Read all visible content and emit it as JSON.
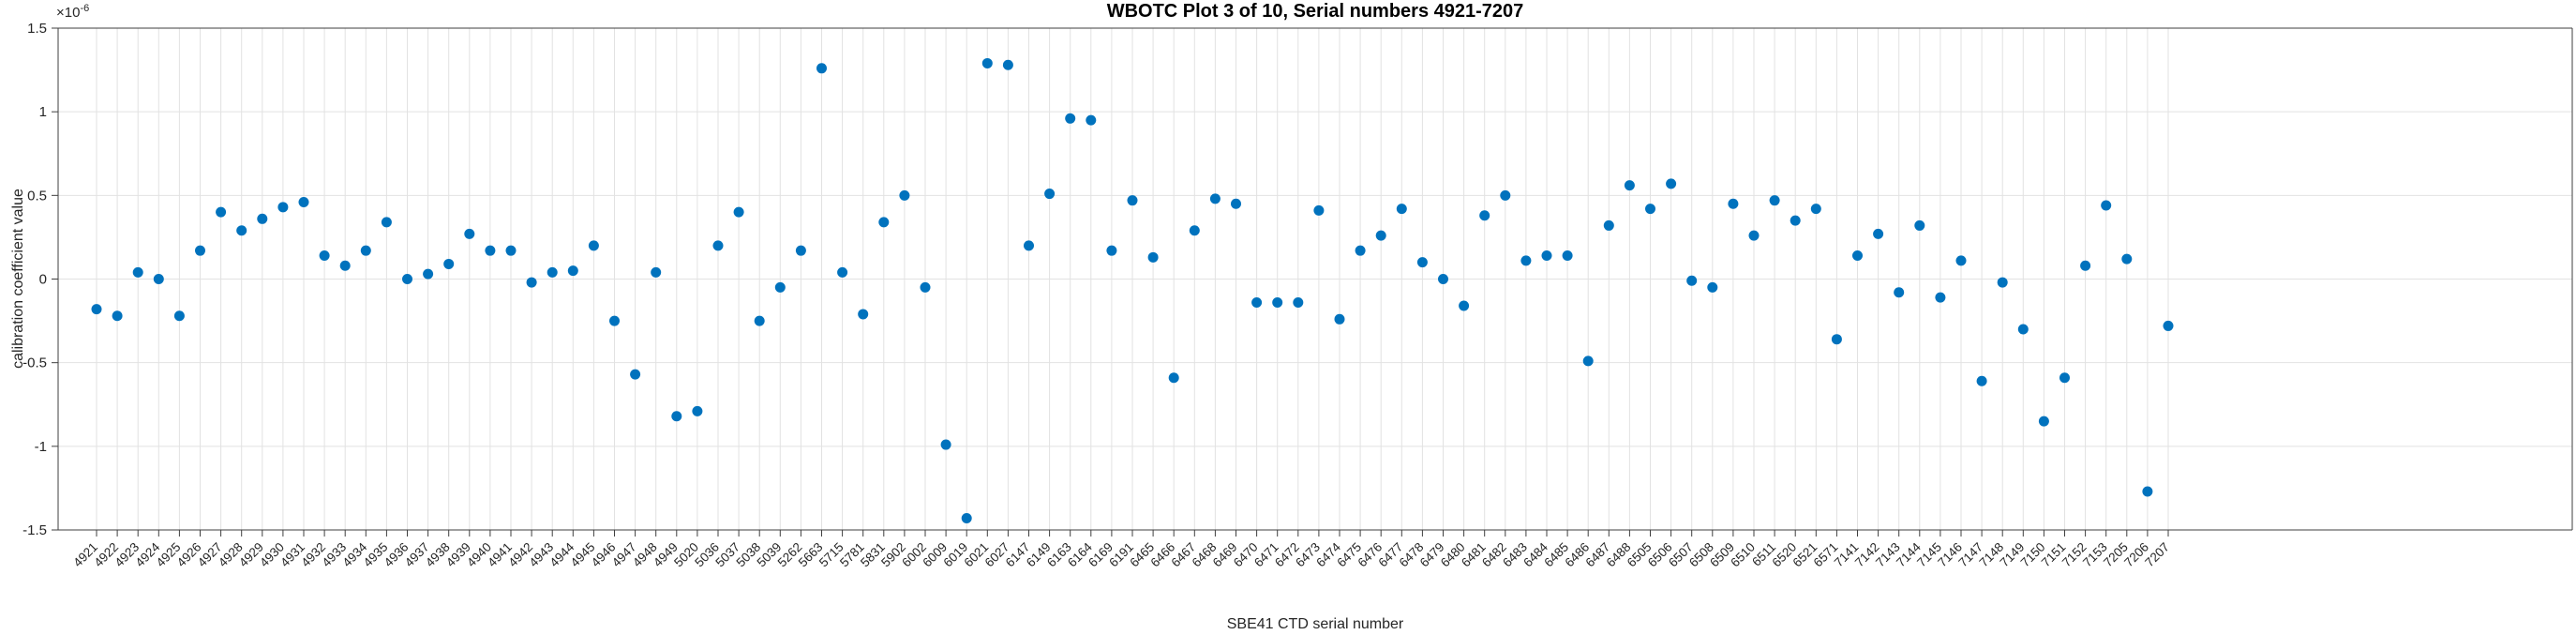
{
  "figure": {
    "y_scale_base": "×10",
    "y_scale_exponent": "-6"
  },
  "chart_data": {
    "type": "scatter",
    "title": "WBOTC Plot 3 of 10, Serial numbers 4921-7207",
    "xlabel": "SBE41 CTD serial number",
    "ylabel": "calibration coefficient value",
    "y_scale_factor": 1e-06,
    "ylim": [
      -1.5,
      1.5
    ],
    "y_ticks": [
      1.5,
      1,
      0.5,
      0,
      -0.5,
      -1,
      -1.5
    ],
    "grid": true,
    "legend": null,
    "marker_color": "#0072BD",
    "categories": [
      "4921",
      "4922",
      "4923",
      "4924",
      "4925",
      "4926",
      "4927",
      "4928",
      "4929",
      "4930",
      "4931",
      "4932",
      "4933",
      "4934",
      "4935",
      "4936",
      "4937",
      "4938",
      "4939",
      "4940",
      "4941",
      "4942",
      "4943",
      "4944",
      "4945",
      "4946",
      "4947",
      "4948",
      "4949",
      "5020",
      "5036",
      "5037",
      "5038",
      "5039",
      "5262",
      "5663",
      "5715",
      "5781",
      "5831",
      "5902",
      "6002",
      "6009",
      "6019",
      "6021",
      "6027",
      "6147",
      "6149",
      "6163",
      "6164",
      "6169",
      "6191",
      "6465",
      "6466",
      "6467",
      "6468",
      "6469",
      "6470",
      "6471",
      "6472",
      "6473",
      "6474",
      "6475",
      "6476",
      "6477",
      "6478",
      "6479",
      "6480",
      "6481",
      "6482",
      "6483",
      "6484",
      "6485",
      "6486",
      "6487",
      "6488",
      "6505",
      "6506",
      "6507",
      "6508",
      "6509",
      "6510",
      "6511",
      "6520",
      "6521",
      "6571",
      "7141",
      "7142",
      "7143",
      "7144",
      "7145",
      "7146",
      "7147",
      "7148",
      "7149",
      "7150",
      "7151",
      "7152",
      "7153",
      "7205",
      "7206",
      "7207"
    ],
    "values": [
      -0.18,
      -0.22,
      0.04,
      0.0,
      -0.22,
      0.17,
      0.4,
      0.29,
      0.36,
      0.43,
      0.46,
      0.14,
      0.08,
      0.17,
      0.34,
      0.0,
      0.03,
      0.09,
      0.27,
      0.17,
      0.17,
      -0.02,
      0.04,
      0.05,
      0.2,
      -0.25,
      -0.57,
      0.04,
      -0.82,
      -0.79,
      0.2,
      0.4,
      -0.25,
      -0.05,
      0.17,
      1.26,
      0.04,
      -0.21,
      0.34,
      0.5,
      -0.05,
      -0.99,
      -1.43,
      1.29,
      1.28,
      0.2,
      0.51,
      0.96,
      0.95,
      0.17,
      0.47,
      0.13,
      -0.59,
      0.29,
      0.48,
      0.45,
      -0.14,
      -0.14,
      -0.14,
      0.41,
      -0.24,
      0.17,
      0.26,
      0.42,
      0.1,
      0.0,
      -0.16,
      0.38,
      0.5,
      0.11,
      0.14,
      0.14,
      -0.49,
      0.32,
      0.56,
      0.42,
      0.57,
      -0.01,
      -0.05,
      0.45,
      0.26,
      0.47,
      0.35,
      0.42,
      -0.36,
      0.14,
      0.27,
      -0.08,
      0.32,
      -0.11,
      0.11,
      -0.61,
      -0.02,
      -0.3,
      -0.85,
      -0.59,
      0.08,
      0.44,
      0.12,
      -1.27,
      -0.28
    ]
  }
}
